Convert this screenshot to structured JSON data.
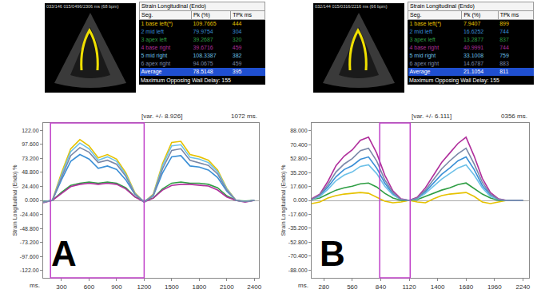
{
  "chart_data": [
    {
      "type": "line",
      "title": "A",
      "image_caption": "033/146 015/0496/2306 ms (68 bpm)",
      "table": {
        "title": "Strain Longitudinal (Endo)",
        "columns": [
          "Seg.",
          "Pk (%)",
          "TPk ms"
        ],
        "average": {
          "name": "Average",
          "pk": 78.5148,
          "tpk": 395
        },
        "note": "Maximum Opposing Wall Delay: 155"
      },
      "xlabel": "ms.",
      "ylabel": "Strain Longitudinal (Endo) %",
      "annotations": [
        "[var. +/- 8.926]",
        "1072 ms."
      ],
      "selection": [
        180,
        1200
      ],
      "grid": false,
      "xlim": [
        100,
        2450
      ],
      "ylim": [
        -135,
        135
      ],
      "xticks": [
        300,
        600,
        900,
        1200,
        1500,
        1800,
        2100,
        2400
      ],
      "yticks": [
        {
          "value": 122,
          "label": "122.00"
        },
        {
          "value": 97.6,
          "label": "97.600"
        },
        {
          "value": 73.2,
          "label": "73.200"
        },
        {
          "value": 48.8,
          "label": "48.800"
        },
        {
          "value": 24.4,
          "label": "24.400"
        },
        {
          "value": 0,
          "label": "0.000"
        },
        {
          "value": -24.4,
          "label": "-24.400"
        },
        {
          "value": -48.8,
          "label": "-48.800"
        },
        {
          "value": -73.2,
          "label": "-73.200"
        },
        {
          "value": -97.6,
          "label": "-97.600"
        },
        {
          "value": -122,
          "label": "-122.00"
        }
      ],
      "x": [
        100,
        200,
        300,
        400,
        500,
        600,
        700,
        800,
        900,
        1000,
        1100,
        1200,
        1300,
        1400,
        1500,
        1600,
        1700,
        1800,
        1900,
        2000,
        2100,
        2200,
        2300,
        2400
      ],
      "series": [
        {
          "name": "1 base left(*)",
          "color": "#e6c200",
          "pk": 109.7665,
          "tpk": 444,
          "values": [
            -3,
            0,
            48,
            90,
            106,
            95,
            74,
            80,
            72,
            48,
            13,
            -3,
            11,
            64,
            101,
            103,
            80,
            76,
            70,
            53,
            21,
            0,
            -2,
            0
          ]
        },
        {
          "name": "2 mid left",
          "color": "#3a8fd6",
          "pk": 79.9754,
          "tpk": 304,
          "values": [
            -2,
            0,
            36,
            68,
            80,
            72,
            56,
            60,
            54,
            36,
            10,
            -2,
            8,
            48,
            76,
            78,
            60,
            58,
            53,
            40,
            16,
            0,
            -2,
            0
          ]
        },
        {
          "name": "3 apex left",
          "color": "#2f9e44",
          "pk": 39.2687,
          "tpk": 320,
          "values": [
            -2,
            0,
            14,
            26,
            30,
            32,
            30,
            32,
            30,
            22,
            6,
            -1,
            4,
            20,
            30,
            32,
            30,
            30,
            28,
            22,
            8,
            0,
            -1,
            0
          ]
        },
        {
          "name": "4 base right",
          "color": "#b02f9c",
          "pk": 39.6716,
          "tpk": 459,
          "values": [
            -4,
            0,
            12,
            24,
            28,
            30,
            28,
            30,
            28,
            20,
            6,
            -3,
            4,
            18,
            26,
            28,
            28,
            27,
            25,
            18,
            6,
            0,
            -3,
            0
          ]
        },
        {
          "name": "5 mid right",
          "color": "#6cc0e8",
          "pk": 108.3387,
          "tpk": 382,
          "values": [
            -3,
            0,
            44,
            85,
            100,
            90,
            70,
            76,
            68,
            45,
            12,
            -3,
            10,
            60,
            95,
            97,
            75,
            72,
            66,
            50,
            20,
            0,
            -2,
            0
          ]
        },
        {
          "name": "6 apex right",
          "color": "#7a88a8",
          "pk": 94.0675,
          "tpk": 459,
          "values": [
            -3,
            0,
            40,
            78,
            92,
            84,
            66,
            70,
            63,
            42,
            11,
            -3,
            9,
            55,
            87,
            90,
            70,
            66,
            61,
            46,
            18,
            0,
            -2,
            0
          ]
        }
      ]
    },
    {
      "type": "line",
      "title": "B",
      "image_caption": "032/144 015/0316/2216 ms (66 bpm)",
      "table": {
        "title": "Strain Longitudinal (Endo)",
        "columns": [
          "Seg.",
          "Pk (%)",
          "TPk ms"
        ],
        "average": {
          "name": "Average",
          "pk": 21.1054,
          "tpk": 811
        },
        "note": "Maximum Opposing Wall Delay: 155"
      },
      "xlabel": "ms.",
      "ylabel": "Strain Longitudinal (Endo) %",
      "annotations": [
        "[var. +/- 6.111]",
        "0356 ms."
      ],
      "selection": [
        830,
        1130
      ],
      "grid": false,
      "xlim": [
        160,
        2300
      ],
      "ylim": [
        -98,
        98
      ],
      "xticks": [
        280,
        560,
        840,
        1120,
        1400,
        1680,
        1960,
        2240
      ],
      "yticks": [
        {
          "value": 88,
          "label": "88.000"
        },
        {
          "value": 70.4,
          "label": "70.400"
        },
        {
          "value": 52.8,
          "label": "52.800"
        },
        {
          "value": 35.2,
          "label": "35.200"
        },
        {
          "value": 17.6,
          "label": "17.600"
        },
        {
          "value": 0,
          "label": "0.000"
        },
        {
          "value": -17.6,
          "label": "-17.600"
        },
        {
          "value": -35.2,
          "label": "-35.200"
        },
        {
          "value": -52.8,
          "label": "-52.800"
        },
        {
          "value": -70.4,
          "label": "-70.400"
        },
        {
          "value": -88,
          "label": "-88.000"
        }
      ],
      "x": [
        160,
        240,
        320,
        400,
        480,
        560,
        640,
        720,
        800,
        880,
        960,
        1040,
        1120,
        1200,
        1280,
        1360,
        1440,
        1520,
        1600,
        1680,
        1760,
        1840,
        1920,
        2000,
        2080,
        2160,
        2240
      ],
      "series": [
        {
          "name": "1 base left(*)",
          "color": "#e6c200",
          "pk": 7.9407,
          "tpk": 899,
          "values": [
            -4,
            -2,
            3,
            6,
            8,
            9,
            10,
            9,
            4,
            -1,
            -3,
            -2,
            0,
            -2,
            -3,
            2,
            6,
            8,
            9,
            10,
            5,
            -2,
            -4,
            -2,
            0,
            0,
            0
          ]
        },
        {
          "name": "2 mid left",
          "color": "#3a8fd6",
          "pk": 16.6252,
          "tpk": 744,
          "values": [
            1,
            6,
            17,
            30,
            39,
            44,
            52,
            55,
            41,
            22,
            8,
            1,
            0,
            3,
            11,
            22,
            33,
            41,
            50,
            55,
            39,
            19,
            7,
            1,
            0,
            0,
            0
          ]
        },
        {
          "name": "3 apex left",
          "color": "#2f9e44",
          "pk": 13.2877,
          "tpk": 837,
          "values": [
            1,
            3,
            8,
            13,
            16,
            18,
            21,
            22,
            17,
            9,
            3,
            0,
            0,
            1,
            5,
            9,
            13,
            16,
            20,
            22,
            15,
            8,
            3,
            0,
            0,
            0,
            0
          ]
        },
        {
          "name": "4 base right",
          "color": "#b02f9c",
          "pk": 40.9991,
          "tpk": 744,
          "values": [
            2,
            8,
            24,
            44,
            56,
            64,
            76,
            80,
            60,
            32,
            12,
            2,
            0,
            4,
            16,
            32,
            48,
            60,
            72,
            80,
            56,
            28,
            10,
            2,
            0,
            0,
            0
          ]
        },
        {
          "name": "5 mid right",
          "color": "#6cc0e8",
          "pk": 33.1008,
          "tpk": 759,
          "values": [
            1,
            5,
            14,
            25,
            32,
            36,
            43,
            45,
            34,
            18,
            7,
            1,
            0,
            2,
            9,
            18,
            27,
            34,
            41,
            45,
            32,
            16,
            5,
            1,
            0,
            0,
            0
          ]
        },
        {
          "name": "6 apex right",
          "color": "#7a88a8",
          "pk": 14.6787,
          "tpk": 883,
          "values": [
            1,
            7,
            20,
            36,
            46,
            53,
            63,
            66,
            50,
            26,
            10,
            1,
            0,
            3,
            13,
            26,
            40,
            50,
            59,
            66,
            46,
            23,
            8,
            1,
            0,
            0,
            0
          ]
        }
      ]
    }
  ]
}
